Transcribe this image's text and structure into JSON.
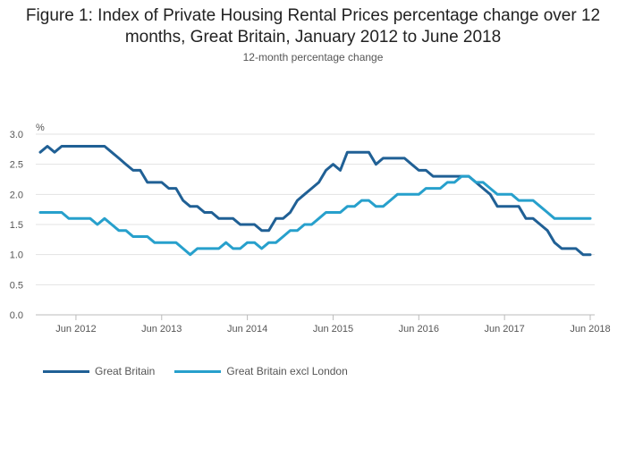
{
  "title_line1": "Figure 1: Index of Private Housing Rental Prices percentage change over 12",
  "title_line2": "months, Great Britain, January 2012 to June 2018",
  "subtitle": "12-month percentage change",
  "colors": {
    "series1": "#206095",
    "series2": "#27a0cc",
    "grid": "#e3e3e3",
    "axis": "#555555"
  },
  "chart_data": {
    "type": "line",
    "ylabel": "%",
    "ylim": [
      0,
      3.0
    ],
    "yticks": [
      "0.0",
      "0.5",
      "1.0",
      "1.5",
      "2.0",
      "2.5",
      "3.0"
    ],
    "xlim": [
      "2012-01",
      "2018-06"
    ],
    "xticks": [
      {
        "label": "Jun 2012",
        "date": "2012-06"
      },
      {
        "label": "Jun 2013",
        "date": "2013-06"
      },
      {
        "label": "Jun 2014",
        "date": "2014-06"
      },
      {
        "label": "Jun 2015",
        "date": "2015-06"
      },
      {
        "label": "Jun 2016",
        "date": "2016-06"
      },
      {
        "label": "Jun 2017",
        "date": "2017-06"
      },
      {
        "label": "Jun 2018",
        "date": "2018-06"
      }
    ],
    "legend_position": "bottom-left",
    "grid": true,
    "series": [
      {
        "name": "Great Britain",
        "start": "2012-01",
        "values": [
          2.7,
          2.8,
          2.7,
          2.8,
          2.8,
          2.8,
          2.8,
          2.8,
          2.8,
          2.8,
          2.7,
          2.6,
          2.5,
          2.4,
          2.4,
          2.2,
          2.2,
          2.2,
          2.1,
          2.1,
          1.9,
          1.8,
          1.8,
          1.7,
          1.7,
          1.6,
          1.6,
          1.6,
          1.5,
          1.5,
          1.5,
          1.4,
          1.4,
          1.6,
          1.6,
          1.7,
          1.9,
          2.0,
          2.1,
          2.2,
          2.4,
          2.5,
          2.4,
          2.7,
          2.7,
          2.7,
          2.7,
          2.5,
          2.6,
          2.6,
          2.6,
          2.6,
          2.5,
          2.4,
          2.4,
          2.3,
          2.3,
          2.3,
          2.3,
          2.3,
          2.3,
          2.2,
          2.1,
          2.0,
          1.8,
          1.8,
          1.8,
          1.8,
          1.6,
          1.6,
          1.5,
          1.4,
          1.2,
          1.1,
          1.1,
          1.1,
          1.0,
          1.0
        ]
      },
      {
        "name": "Great Britain excl London",
        "start": "2012-01",
        "values": [
          1.7,
          1.7,
          1.7,
          1.7,
          1.6,
          1.6,
          1.6,
          1.6,
          1.5,
          1.6,
          1.5,
          1.4,
          1.4,
          1.3,
          1.3,
          1.3,
          1.2,
          1.2,
          1.2,
          1.2,
          1.1,
          1.0,
          1.1,
          1.1,
          1.1,
          1.1,
          1.2,
          1.1,
          1.1,
          1.2,
          1.2,
          1.1,
          1.2,
          1.2,
          1.3,
          1.4,
          1.4,
          1.5,
          1.5,
          1.6,
          1.7,
          1.7,
          1.7,
          1.8,
          1.8,
          1.9,
          1.9,
          1.8,
          1.8,
          1.9,
          2.0,
          2.0,
          2.0,
          2.0,
          2.1,
          2.1,
          2.1,
          2.2,
          2.2,
          2.3,
          2.3,
          2.2,
          2.2,
          2.1,
          2.0,
          2.0,
          2.0,
          1.9,
          1.9,
          1.9,
          1.8,
          1.7,
          1.6,
          1.6,
          1.6,
          1.6,
          1.6,
          1.6
        ]
      }
    ]
  }
}
